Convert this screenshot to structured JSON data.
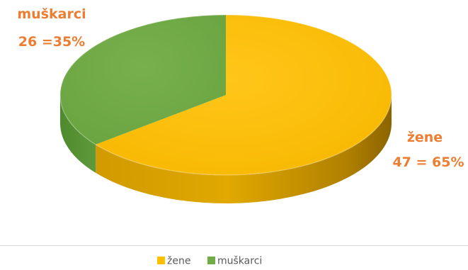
{
  "chart_data": {
    "type": "pie",
    "style": "3d",
    "slices": [
      {
        "name": "žene",
        "value": 47,
        "percent": 65,
        "label_line1": "žene",
        "label_line2": "47 = 65%",
        "color": "#FFC000"
      },
      {
        "name": "muškarci",
        "value": 26,
        "percent": 35,
        "label_line1": "muškarci",
        "label_line2": "26 =35%",
        "color": "#70AD47"
      }
    ],
    "label_color": "#ED7D31",
    "legend": {
      "placement": "bottom",
      "items": [
        "žene",
        "muškarci"
      ]
    },
    "legend_border_color": "#D9D9D9"
  }
}
